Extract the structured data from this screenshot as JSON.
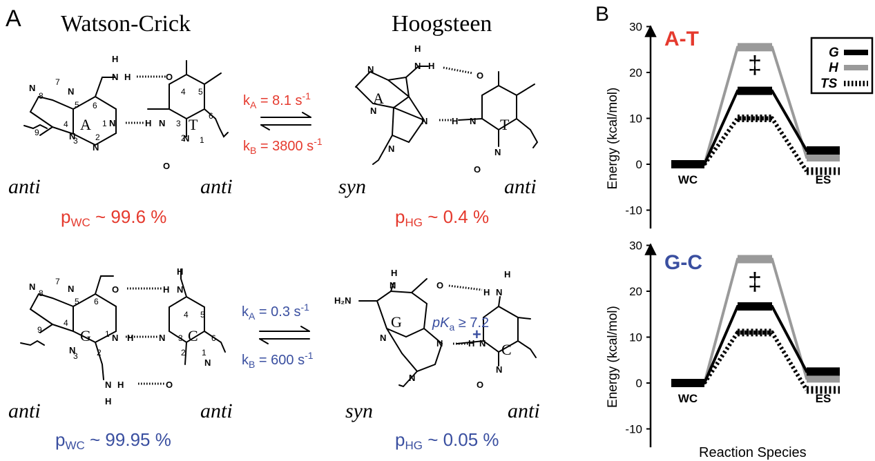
{
  "panel_a": {
    "label": "A",
    "wc_title": "Watson-Crick",
    "hg_title": "Hoogsteen",
    "colors": {
      "at": "#e53a2e",
      "gc": "#3a4fa0"
    },
    "at": {
      "ka_label": "k",
      "ka_sub": "A",
      "ka_val": " = 8.1 s",
      "ka_sup": "-1",
      "kb_label": "k",
      "kb_sub": "B",
      "kb_val": " = 3800 s",
      "kb_sup": "-1",
      "pwc_label": "p",
      "pwc_sub": "WC",
      "pwc_val": " ~ 99.6 %",
      "phg_label": "p",
      "phg_sub": "HG",
      "phg_val": " ~ 0.4 %",
      "wc_left": "anti",
      "wc_right": "anti",
      "hg_left": "syn",
      "hg_right": "anti",
      "base_a": "A",
      "base_t": "T"
    },
    "gc": {
      "ka_label": "k",
      "ka_sub": "A",
      "ka_val": " = 0.3 s",
      "ka_sup": "-1",
      "kb_label": "k",
      "kb_sub": "B",
      "kb_val": " = 600 s",
      "kb_sup": "-1",
      "pwc_label": "p",
      "pwc_sub": "WC",
      "pwc_val": " ~ 99.95 %",
      "phg_label": "p",
      "phg_sub": "HG",
      "phg_val": " ~ 0.05 %",
      "pka_label": "pK",
      "pka_sub": "a",
      "pka_val": " ≥ 7.2",
      "plus": "+",
      "wc_left": "anti",
      "wc_right": "anti",
      "hg_left": "syn",
      "hg_right": "anti",
      "base_g": "G",
      "base_c": "C",
      "nh2": "H₂N"
    },
    "atoms": {
      "N": "N",
      "H": "H",
      "O": "O"
    },
    "ring_numbers": {
      "purine": [
        "8",
        "7",
        "9",
        "5",
        "6",
        "4",
        "1",
        "3",
        "2"
      ],
      "pyrimidine": [
        "4",
        "5",
        "3",
        "6",
        "2",
        "1"
      ]
    }
  },
  "panel_b": {
    "label": "B",
    "xlabel": "Reaction Species",
    "legend": [
      {
        "name": "G",
        "color": "#000000",
        "style": "solid"
      },
      {
        "name": "H",
        "color": "#9a9a9a",
        "style": "solid"
      },
      {
        "name": "TS",
        "color": "#000000",
        "style": "dashed"
      }
    ],
    "ts_symbol": "‡"
  },
  "chart_data": [
    {
      "type": "line",
      "title": "A-T",
      "title_color": "#e53a2e",
      "xlabel": "Reaction Species",
      "ylabel": "Energy (kcal/mol)",
      "ylim": [
        -14,
        37
      ],
      "yticks": [
        -10,
        0,
        10,
        20,
        30
      ],
      "categories": [
        "WC",
        "",
        "ES"
      ],
      "series": [
        {
          "name": "G",
          "values": [
            0,
            16,
            3
          ]
        },
        {
          "name": "H",
          "values": [
            0,
            25.5,
            1.5
          ]
        },
        {
          "name": "TS",
          "values": [
            0,
            10,
            -1.5
          ]
        }
      ]
    },
    {
      "type": "line",
      "title": "G-C",
      "title_color": "#3a4fa0",
      "xlabel": "Reaction Species",
      "ylabel": "Energy (kcal/mol)",
      "ylim": [
        -14,
        37
      ],
      "yticks": [
        -10,
        0,
        10,
        20,
        30
      ],
      "categories": [
        "WC",
        "",
        "ES"
      ],
      "series": [
        {
          "name": "G",
          "values": [
            0,
            16.7,
            2.5
          ]
        },
        {
          "name": "H",
          "values": [
            0,
            27,
            1
          ]
        },
        {
          "name": "TS",
          "values": [
            0,
            11,
            -1.5
          ]
        }
      ]
    }
  ]
}
